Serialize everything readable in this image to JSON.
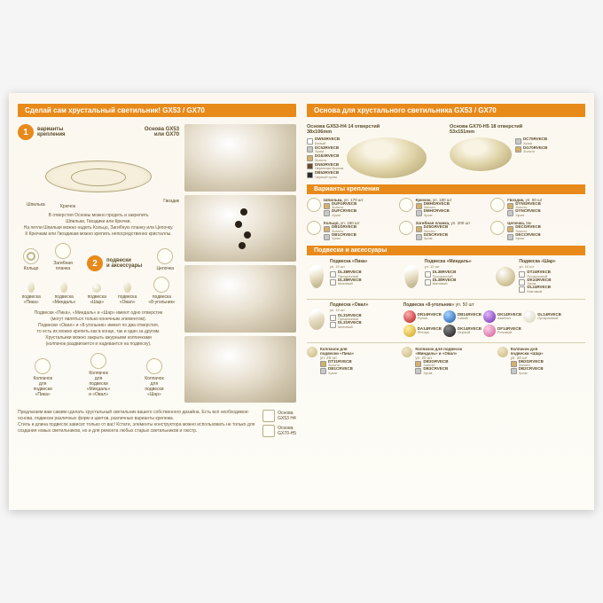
{
  "left": {
    "title": "Сделай сам хрустальный светильник! GX53 / GX70",
    "step1_label": "варианты\nкрепления",
    "base_title": "Основа GX53\nили GX70",
    "callouts": {
      "shpilka": "Шпилька",
      "kryuchok": "Крючок",
      "gvozdik": "Гвоздик",
      "koltso": "Кольцо",
      "planka": "Загибная\nпланка",
      "tsepochka": "Цепочка"
    },
    "desc1": "В отверстия Основы можно продеть и закрепить\nШпильки, Гвоздики или Крючки.\nНа петли Шпильки можно надеть Кольцо, Загибную планку или Цепочку.\nК Крючкам или Гвоздикам можно крепить непосредственно кристаллы.",
    "step2_label": "подвески\nи аксессуары",
    "pendants_top": [
      {
        "name": "подвеска\n«Пика»"
      },
      {
        "name": "подвеска\n«Миндаль»"
      },
      {
        "name": "подвеска\n«Шар»"
      },
      {
        "name": "подвеска\n«Овал»"
      },
      {
        "name": "подвеска\n«8-угольник»"
      }
    ],
    "desc2": "Подвески «Пика», «Миндаль» и «Шар» имеют одно отверстие\n(могут являться только конечным элементом).\nПодвески «Овал» и «8-угольник» имеют по два отверстия,\nто есть их можно крепить как в конце, так и один за другим.\nХрустальики можно закрыть ажурными колпачками\n(колпачок раздвигается и надевается на подвеску).",
    "caps": [
      {
        "name": "Колпачок\nдля\nподвески\n«Пика»"
      },
      {
        "name": "Колпачок\nдля\nподвески\n«Миндаль»\nи «Овал»"
      },
      {
        "name": "Колпачок\nдля\nподвески\n«Шар»"
      }
    ],
    "footer_text": "Предлагаем вам самим сделать хрустальный светильник вашего собственного дизайна. Есть всё необходимое: основа, подвески различных форм и цветов, различные варианты крепежа.\nСтиль и длина подвесок зависит только от вас! Кстати, элементы конструктора можно использовать не только для создания новых светильников, но и для ремонта любых старых светильников и люстр.",
    "footer_badges": [
      {
        "label": "Основа\nGX53 H4"
      },
      {
        "label": "Основа\nGX70-H5"
      }
    ]
  },
  "right": {
    "title": "Основа для хрустального светильника GX53 / GX70",
    "base1": {
      "title": "Основа GX53-H4 14 отверстий\n38x106mm",
      "items": [
        {
          "swatch": "white",
          "code": "DW53RVECB",
          "finish": "Белый"
        },
        {
          "swatch": "chrome",
          "code": "DC53RVECB",
          "finish": "Хром"
        },
        {
          "swatch": "gold",
          "code": "DG53RVECB",
          "finish": "Золото"
        },
        {
          "swatch": "bronze",
          "code": "DN53RVECB",
          "finish": "Черненая бронза"
        },
        {
          "swatch": "black",
          "code": "DB53RVECB",
          "finish": "Черный хром"
        }
      ]
    },
    "base2": {
      "title": "Основа GX70-H5 18 отверстий\n53x151mm",
      "items": [
        {
          "swatch": "chrome",
          "code": "DC70RVECB",
          "finish": "Хром"
        },
        {
          "swatch": "gold",
          "code": "DG70RVECB",
          "finish": "Золото"
        }
      ]
    },
    "sec2_title": "Варианты крепления",
    "mounts": [
      {
        "name": "Шпилька",
        "note": "уп. 170 шт",
        "codes": [
          [
            "gold",
            "DUFGRVECB",
            "Золото"
          ],
          [
            "chrome",
            "DUFCRVECB",
            "Хром"
          ]
        ]
      },
      {
        "name": "Крючок",
        "note": "уп. 180 шт",
        "codes": [
          [
            "gold",
            "DMHGRVECB",
            "Золото"
          ],
          [
            "chrome",
            "DMHCRVECB",
            "Хром"
          ]
        ]
      },
      {
        "name": "Гвоздик",
        "note": "уп. 80 шт",
        "codes": [
          [
            "gold",
            "DYNGRVECB",
            "Золото"
          ],
          [
            "chrome",
            "DYNCRVECB",
            "Хром"
          ]
        ]
      },
      {
        "name": "Кольцо",
        "note": "уп. 180 шт",
        "codes": [
          [
            "gold",
            "DB1GRVECB",
            "Золото"
          ],
          [
            "chrome",
            "DB1CRVECB",
            "Хром"
          ]
        ]
      },
      {
        "name": "Загибная планка",
        "note": "уп. 200 шт",
        "codes": [
          [
            "gold",
            "DZ5GRVECB",
            "Золото"
          ],
          [
            "chrome",
            "DZ5CRVECB",
            "Хром"
          ]
        ]
      },
      {
        "name": "Цепочка",
        "note": "5м",
        "codes": [
          [
            "gold",
            "DECGRVECB",
            "Золото"
          ],
          [
            "chrome",
            "DECCRVECB",
            "Хром"
          ]
        ]
      }
    ],
    "sec3_title": "Подвески и аксессуары",
    "pendant_row1": [
      {
        "title": "Подвеска «Пика»",
        "sub": "уп. 10 шт",
        "codes": [
          [
            "clear",
            "DL38RVECB",
            "Прозрачный"
          ],
          [
            "clear",
            "DL38RVECB",
            "Матовый"
          ]
        ]
      },
      {
        "title": "Подвеска «Миндаль»",
        "sub": "уп. 10 шт",
        "codes": [
          [
            "clear",
            "DL38RVECB",
            "Прозрачный"
          ],
          [
            "clear",
            "DL38RVECB",
            "Матовый"
          ]
        ]
      },
      {
        "title": "Подвеска «Шар»",
        "sub": "уп. 10 шт",
        "codes": [
          [
            "clear",
            "DT24RVECB",
            "Прозрачный"
          ],
          [
            "clear",
            "DK24RVECB",
            "Хром"
          ],
          [
            "clear",
            "DL24RVECB",
            "Матовый"
          ]
        ]
      }
    ],
    "pendant_row2": [
      {
        "title": "Подвеска «Овал»",
        "sub": "уп. 10 шт",
        "codes": [
          [
            "clear",
            "DL31RVECB",
            "Прозрачный"
          ],
          [
            "clear",
            "DL31RVECB",
            "Матовый"
          ]
        ]
      },
      {
        "title": "Подвеска «8-угольник»",
        "sub": "уп. 50 шт",
        "colors": [
          {
            "c": "red",
            "code": "DR14RVECB",
            "name": "Рубин"
          },
          {
            "c": "blue",
            "code": "DB14RVECB",
            "name": "Синий"
          },
          {
            "c": "purple",
            "code": "DK14RVECB",
            "name": "Аметист"
          },
          {
            "c": "clear",
            "code": "DL14RVECB",
            "name": "Прозрачный"
          },
          {
            "c": "yellow",
            "code": "DA14RVECB",
            "name": "Янтарь"
          },
          {
            "c": "black",
            "code": "DK14RVECB",
            "name": "Черный"
          },
          {
            "c": "pink",
            "code": "DF14RVECB",
            "name": "Розовый"
          }
        ]
      }
    ],
    "cap_row": [
      {
        "title": "Колпачок для\nподвески «Пика»",
        "sub": "уп. 20 шт",
        "codes": [
          [
            "gold",
            "DT31RVECB",
            "Золото"
          ],
          [
            "chrome",
            "DB1CRVECB",
            "Хром"
          ]
        ]
      },
      {
        "title": "Колпачок для подвесок\n«Миндаль» и «Овал»",
        "sub": "уп. 20 шт",
        "codes": [
          [
            "gold",
            "DB3GRVECB",
            "Золото"
          ],
          [
            "chrome",
            "DB3CRVECB",
            "Хром"
          ]
        ]
      },
      {
        "title": "Колпачок для\nподвески «Шар»",
        "sub": "уп. 20 шт",
        "codes": [
          [
            "gold",
            "DB2GRVECB",
            "Золото"
          ],
          [
            "chrome",
            "DB2CRVECB",
            "Хром"
          ]
        ]
      }
    ]
  }
}
